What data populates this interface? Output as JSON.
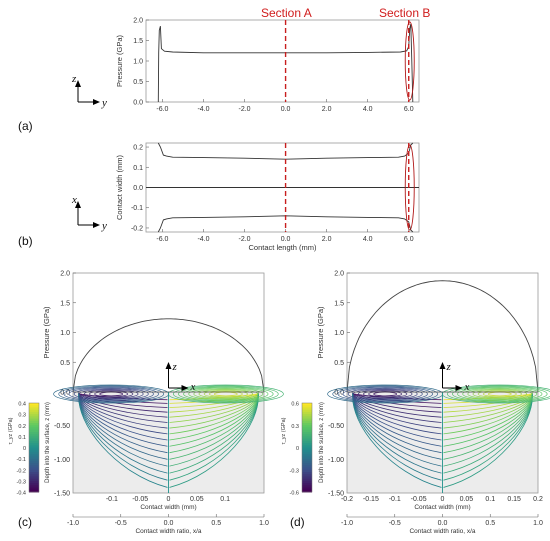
{
  "panel_labels": [
    "(a)",
    "(b)",
    "(c)",
    "(d)"
  ],
  "top_axes": {
    "z": "z",
    "y": "y",
    "x": "x"
  },
  "sections": [
    "Section A",
    "Section B"
  ],
  "chart_data": [
    {
      "id": "a",
      "type": "line",
      "title": "",
      "xlabel": "",
      "ylabel": "Pressure (GPa)",
      "xlim": [
        -6.8,
        6.5
      ],
      "ylim": [
        0,
        2.0
      ],
      "xticks": [
        "-6.0",
        "-4.0",
        "-2.0",
        "0.0",
        "2.0",
        "4.0",
        "6.0"
      ],
      "yticks": [
        "0.0",
        "0.5",
        "1.0",
        "1.5",
        "2.0"
      ],
      "series": [
        {
          "x": [
            -6.2,
            -6.18,
            -6.15,
            -6.1,
            -6.05,
            -5.9,
            -5.5,
            -4.0,
            -2.0,
            0.0,
            2.0,
            4.0,
            5.6,
            5.9,
            6.0,
            6.05,
            6.1,
            6.15,
            6.2
          ],
          "y": [
            0.0,
            1.2,
            1.75,
            1.85,
            1.3,
            1.24,
            1.22,
            1.2,
            1.2,
            1.2,
            1.2,
            1.21,
            1.22,
            1.25,
            1.35,
            1.8,
            1.9,
            1.0,
            0.0
          ]
        }
      ],
      "annotations": [
        "Section A",
        "Section B"
      ],
      "section_lines_x": [
        0.0,
        6.0
      ]
    },
    {
      "id": "b",
      "type": "line",
      "title": "",
      "xlabel": "Contact length (mm)",
      "ylabel": "Contact width (mm)",
      "xlim": [
        -6.8,
        6.5
      ],
      "ylim": [
        -0.22,
        0.22
      ],
      "xticks": [
        "-6.0",
        "-4.0",
        "-2.0",
        "0.0",
        "2.0",
        "4.0",
        "6.0"
      ],
      "yticks": [
        "-0.2",
        "-0.1",
        "0.0",
        "0.1",
        "0.2"
      ],
      "series": [
        {
          "x": [
            -6.2,
            -6.1,
            -5.95,
            -5.8,
            -5.5,
            -4.0,
            -2.0,
            0.0,
            2.0,
            4.0,
            5.5,
            5.8,
            6.0,
            6.1,
            6.2
          ],
          "y": [
            0.22,
            0.2,
            0.16,
            0.155,
            0.15,
            0.148,
            0.145,
            0.14,
            0.145,
            0.148,
            0.15,
            0.155,
            0.17,
            0.21,
            0.22
          ]
        },
        {
          "x": [
            -6.2,
            -6.1,
            -5.95,
            -5.8,
            -5.5,
            -4.0,
            -2.0,
            0.0,
            2.0,
            4.0,
            5.5,
            5.8,
            6.0,
            6.1,
            6.2
          ],
          "y": [
            -0.22,
            -0.2,
            -0.16,
            -0.155,
            -0.15,
            -0.148,
            -0.145,
            -0.14,
            -0.145,
            -0.148,
            -0.15,
            -0.155,
            -0.17,
            -0.21,
            -0.22
          ]
        },
        {
          "x": [
            -6.8,
            6.5
          ],
          "y": [
            0.0,
            0.0
          ]
        }
      ],
      "section_lines_x": [
        0.0,
        6.0
      ]
    },
    {
      "id": "c",
      "type": "line",
      "title": "",
      "ylabel_top": "Pressure (GPa)",
      "ylabel_bottom": "Depth into the surface, z (mm)",
      "xlabel": "Contact width (mm)",
      "xlabel2": "Contact width ratio, x/a",
      "pressure": {
        "peak": 1.23,
        "a_mm": 0.14,
        "ylim": [
          0,
          2.0
        ],
        "yticks": [
          "0.0",
          "0.5",
          "1.0",
          "1.5",
          "2.0"
        ]
      },
      "depth": {
        "ylim": [
          -1.5,
          0
        ],
        "yticks": [
          "0.0",
          "-0.50",
          "-1.00",
          "-1.50"
        ]
      },
      "xticks_mm": [
        "-0.1",
        "-0.05",
        "0",
        "0.05",
        "0.1"
      ],
      "xticks_ratio": [
        "-1.0",
        "-0.5",
        "0.0",
        "0.5",
        "1.0"
      ],
      "colorbar": {
        "label": "τ_yz (GPa)",
        "ticks": [
          "0.4",
          "0.3",
          "0.2",
          "0.1",
          "0",
          "-0.1",
          "-0.2",
          "-0.3",
          "-0.4"
        ],
        "range": [
          -0.4,
          0.4
        ]
      }
    },
    {
      "id": "d",
      "type": "line",
      "title": "",
      "ylabel_top": "Pressure (GPa)",
      "ylabel_bottom": "Depth into the surface, z (mm)",
      "xlabel": "Contact width (mm)",
      "xlabel2": "Contact width ratio, x/a",
      "pressure": {
        "peak": 1.87,
        "a_mm": 0.2,
        "ylim": [
          0,
          2.0
        ],
        "yticks": [
          "0.0",
          "0.5",
          "1.0",
          "1.5",
          "2.0"
        ]
      },
      "depth": {
        "ylim": [
          -1.5,
          0
        ],
        "yticks": [
          "0.0",
          "-0.50",
          "-1.00",
          "-1.50"
        ]
      },
      "xticks_mm": [
        "-0.2",
        "-0.15",
        "-0.1",
        "-0.05",
        "0",
        "0.05",
        "0.1",
        "0.15",
        "0.2"
      ],
      "xticks_ratio": [
        "-1.0",
        "-0.5",
        "0.0",
        "0.5",
        "1.0"
      ],
      "colorbar": {
        "label": "τ_yz (GPa)",
        "ticks": [
          "0.6",
          "0.3",
          "0",
          "-0.3",
          "-0.6"
        ],
        "range": [
          -0.6,
          0.6
        ]
      }
    }
  ]
}
